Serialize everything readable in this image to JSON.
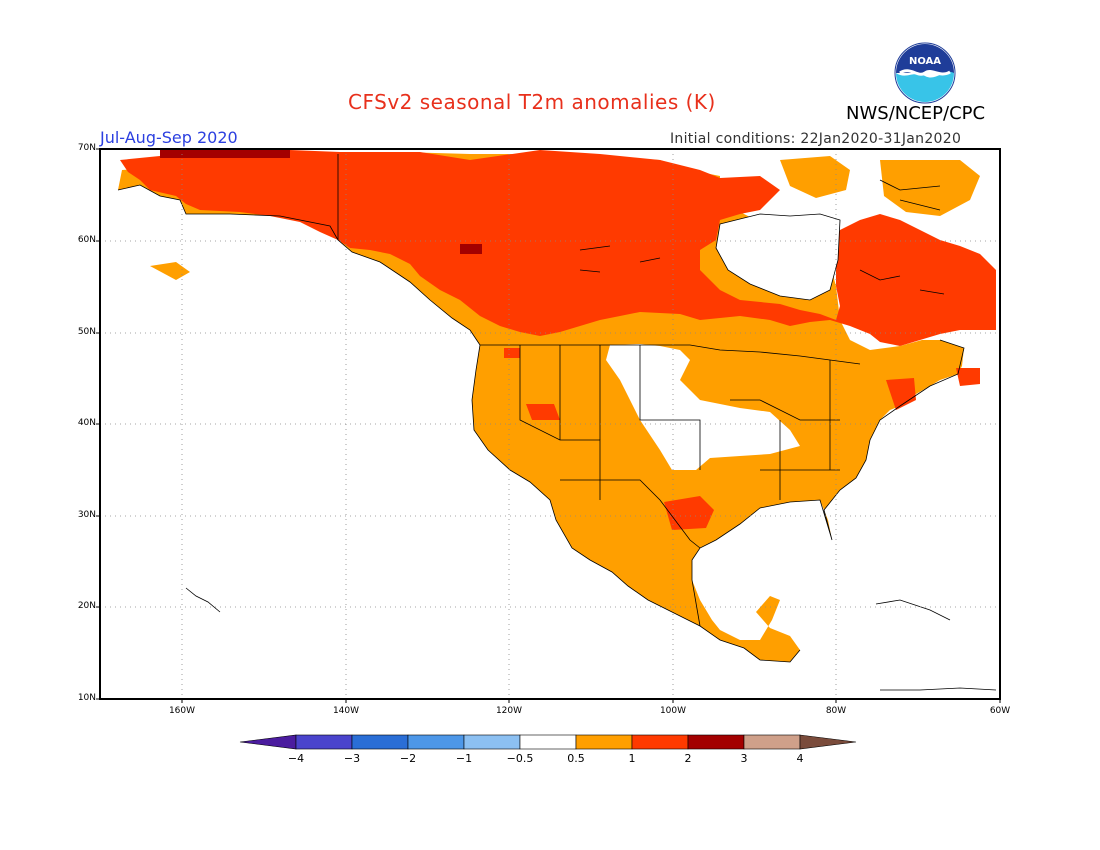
{
  "title": "CFSv2 seasonal T2m anomalies (K)",
  "agency": "NWS/NCEP/CPC",
  "period": "Jul-Aug-Sep 2020",
  "initial_conditions": "Initial conditions: 22Jan2020-31Jan2020",
  "logo_text": "NOAA",
  "map": {
    "lat_ticks": [
      "70N",
      "60N",
      "50N",
      "40N",
      "30N",
      "20N",
      "10N"
    ],
    "lon_ticks": [
      "160W",
      "140W",
      "120W",
      "100W",
      "80W",
      "60W"
    ]
  },
  "colorbar": {
    "labels": [
      "−4",
      "−3",
      "−2",
      "−1",
      "−0.5",
      "0.5",
      "1",
      "2",
      "3",
      "4"
    ],
    "colors": [
      "#4b1c9f",
      "#4a44cc",
      "#2a6ed6",
      "#4d97e8",
      "#8cc0f2",
      "#ffffff",
      "#ff9f00",
      "#ff3a00",
      "#a30000",
      "#cfa08a",
      "#7a4b3b"
    ]
  },
  "legend_colors": {
    "anom_0_5_to_1": "#ff9f00",
    "anom_1_to_2": "#ff3a00",
    "anom_2_to_3": "#a30000",
    "text_red": "#e8301c",
    "text_blue": "#2b3fe0"
  }
}
